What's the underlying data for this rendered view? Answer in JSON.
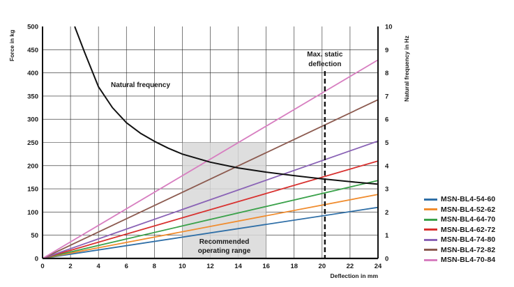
{
  "chart_data": {
    "type": "line",
    "x": {
      "label": "Deflection in mm",
      "range": [
        0,
        24
      ],
      "ticks": [
        "0",
        "2",
        "4",
        "6",
        "8",
        "10",
        "12",
        "14",
        "16",
        "18",
        "20",
        "22",
        "24"
      ]
    },
    "y_left": {
      "label": "Force in kg",
      "range": [
        0,
        500
      ],
      "ticks": [
        "0",
        "50",
        "100",
        "150",
        "200",
        "250",
        "300",
        "350",
        "400",
        "450",
        "500"
      ]
    },
    "y_right": {
      "label": "Natural frequency in Hz",
      "range": [
        0,
        10
      ],
      "ticks": [
        "0",
        "1",
        "2",
        "3",
        "4",
        "5",
        "6",
        "7",
        "8",
        "9",
        "10"
      ]
    },
    "series": [
      {
        "name": "MSN-BL4-54-60",
        "color": "#2f6fa7",
        "x": [
          0,
          24
        ],
        "y": [
          0,
          110
        ]
      },
      {
        "name": "MSN-BL4-52-62",
        "color": "#f08c2e",
        "x": [
          0,
          24
        ],
        "y": [
          0,
          138
        ]
      },
      {
        "name": "MSN-BL4-64-70",
        "color": "#3aa14a",
        "x": [
          0,
          24
        ],
        "y": [
          0,
          168
        ]
      },
      {
        "name": "MSN-BL4-62-72",
        "color": "#d8312f",
        "x": [
          0,
          24
        ],
        "y": [
          0,
          210
        ]
      },
      {
        "name": "MSN-BL4-74-80",
        "color": "#8a63b6",
        "x": [
          0,
          24
        ],
        "y": [
          0,
          253
        ]
      },
      {
        "name": "MSN-BL4-72-82",
        "color": "#8c5a4f",
        "x": [
          0,
          24
        ],
        "y": [
          0,
          342
        ]
      },
      {
        "name": "MSN-BL4-70-84",
        "color": "#d77ec0",
        "x": [
          0,
          24
        ],
        "y": [
          0,
          428
        ]
      }
    ],
    "natural_frequency": {
      "label": "Natural frequency",
      "axis": "right",
      "color": "#111111",
      "x": [
        2.3,
        3,
        4,
        5,
        6,
        7,
        8,
        9,
        10,
        12,
        14,
        16,
        18,
        20,
        22,
        24
      ],
      "y": [
        10,
        8.9,
        7.4,
        6.5,
        5.85,
        5.4,
        5.05,
        4.75,
        4.5,
        4.15,
        3.9,
        3.72,
        3.57,
        3.43,
        3.31,
        3.2
      ]
    },
    "recommended_range": {
      "label": "Recommended\noperating range",
      "x": [
        10,
        16
      ],
      "y_top": 250
    },
    "max_static_deflection": {
      "label": "Max. static\ndeflection",
      "x": 20.2
    }
  }
}
